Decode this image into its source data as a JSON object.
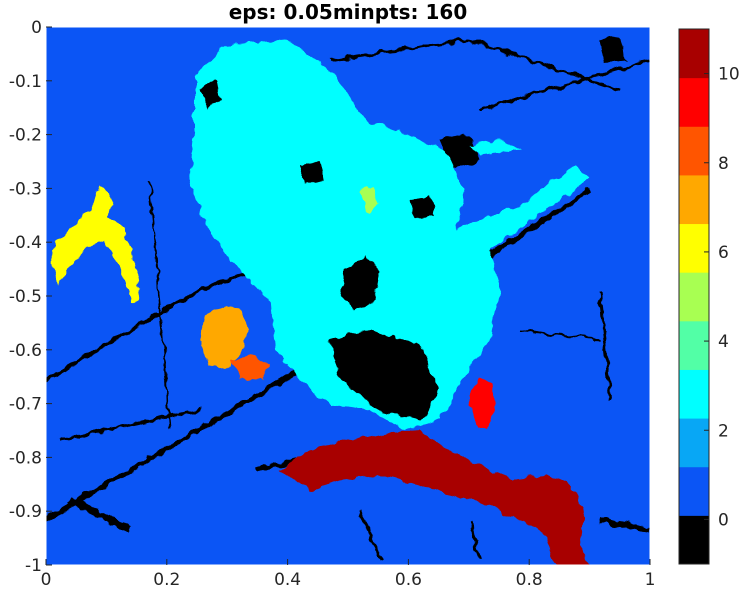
{
  "chart_data": {
    "type": "heatmap",
    "title": "eps: 0.05minpts: 160",
    "xlabel": "",
    "ylabel": "",
    "xlim": [
      0,
      1
    ],
    "ylim": [
      -1,
      0
    ],
    "x_ticks": [
      "0",
      "0.2",
      "0.4",
      "0.6",
      "0.8",
      "1"
    ],
    "y_ticks": [
      "0",
      "-0.1",
      "-0.2",
      "-0.3",
      "-0.4",
      "-0.5",
      "-0.6",
      "-0.7",
      "-0.8",
      "-0.9",
      "-1"
    ],
    "grid": false,
    "colorbar": {
      "range": [
        -1,
        11
      ],
      "ticks": [
        "0",
        "2",
        "4",
        "6",
        "8",
        "10"
      ],
      "colors": [
        "#000000",
        "#0b55f5",
        "#08a7f5",
        "#00ffff",
        "#52ffa6",
        "#a8ff52",
        "#ffff00",
        "#ffa800",
        "#ff5500",
        "#ff0000",
        "#a80000"
      ]
    },
    "clusters": [
      {
        "label": 1,
        "color": "#0b55f5",
        "region": "background"
      },
      {
        "label": 3,
        "color": "#00ffff",
        "region": "center"
      },
      {
        "label": 6,
        "color": "#ffff00",
        "region": "left"
      },
      {
        "label": 7,
        "color": "#ffa800",
        "region": "center-left"
      },
      {
        "label": 8,
        "color": "#ff5500",
        "region": "center-left"
      },
      {
        "label": 10,
        "color": "#a80000",
        "region": "bottom-right"
      },
      {
        "label": 9,
        "color": "#ff0000",
        "region": "bottom-center"
      },
      {
        "label": 5,
        "color": "#a8ff52",
        "region": "center"
      },
      {
        "label": 0,
        "color": "#000000",
        "region": "noise"
      }
    ]
  }
}
